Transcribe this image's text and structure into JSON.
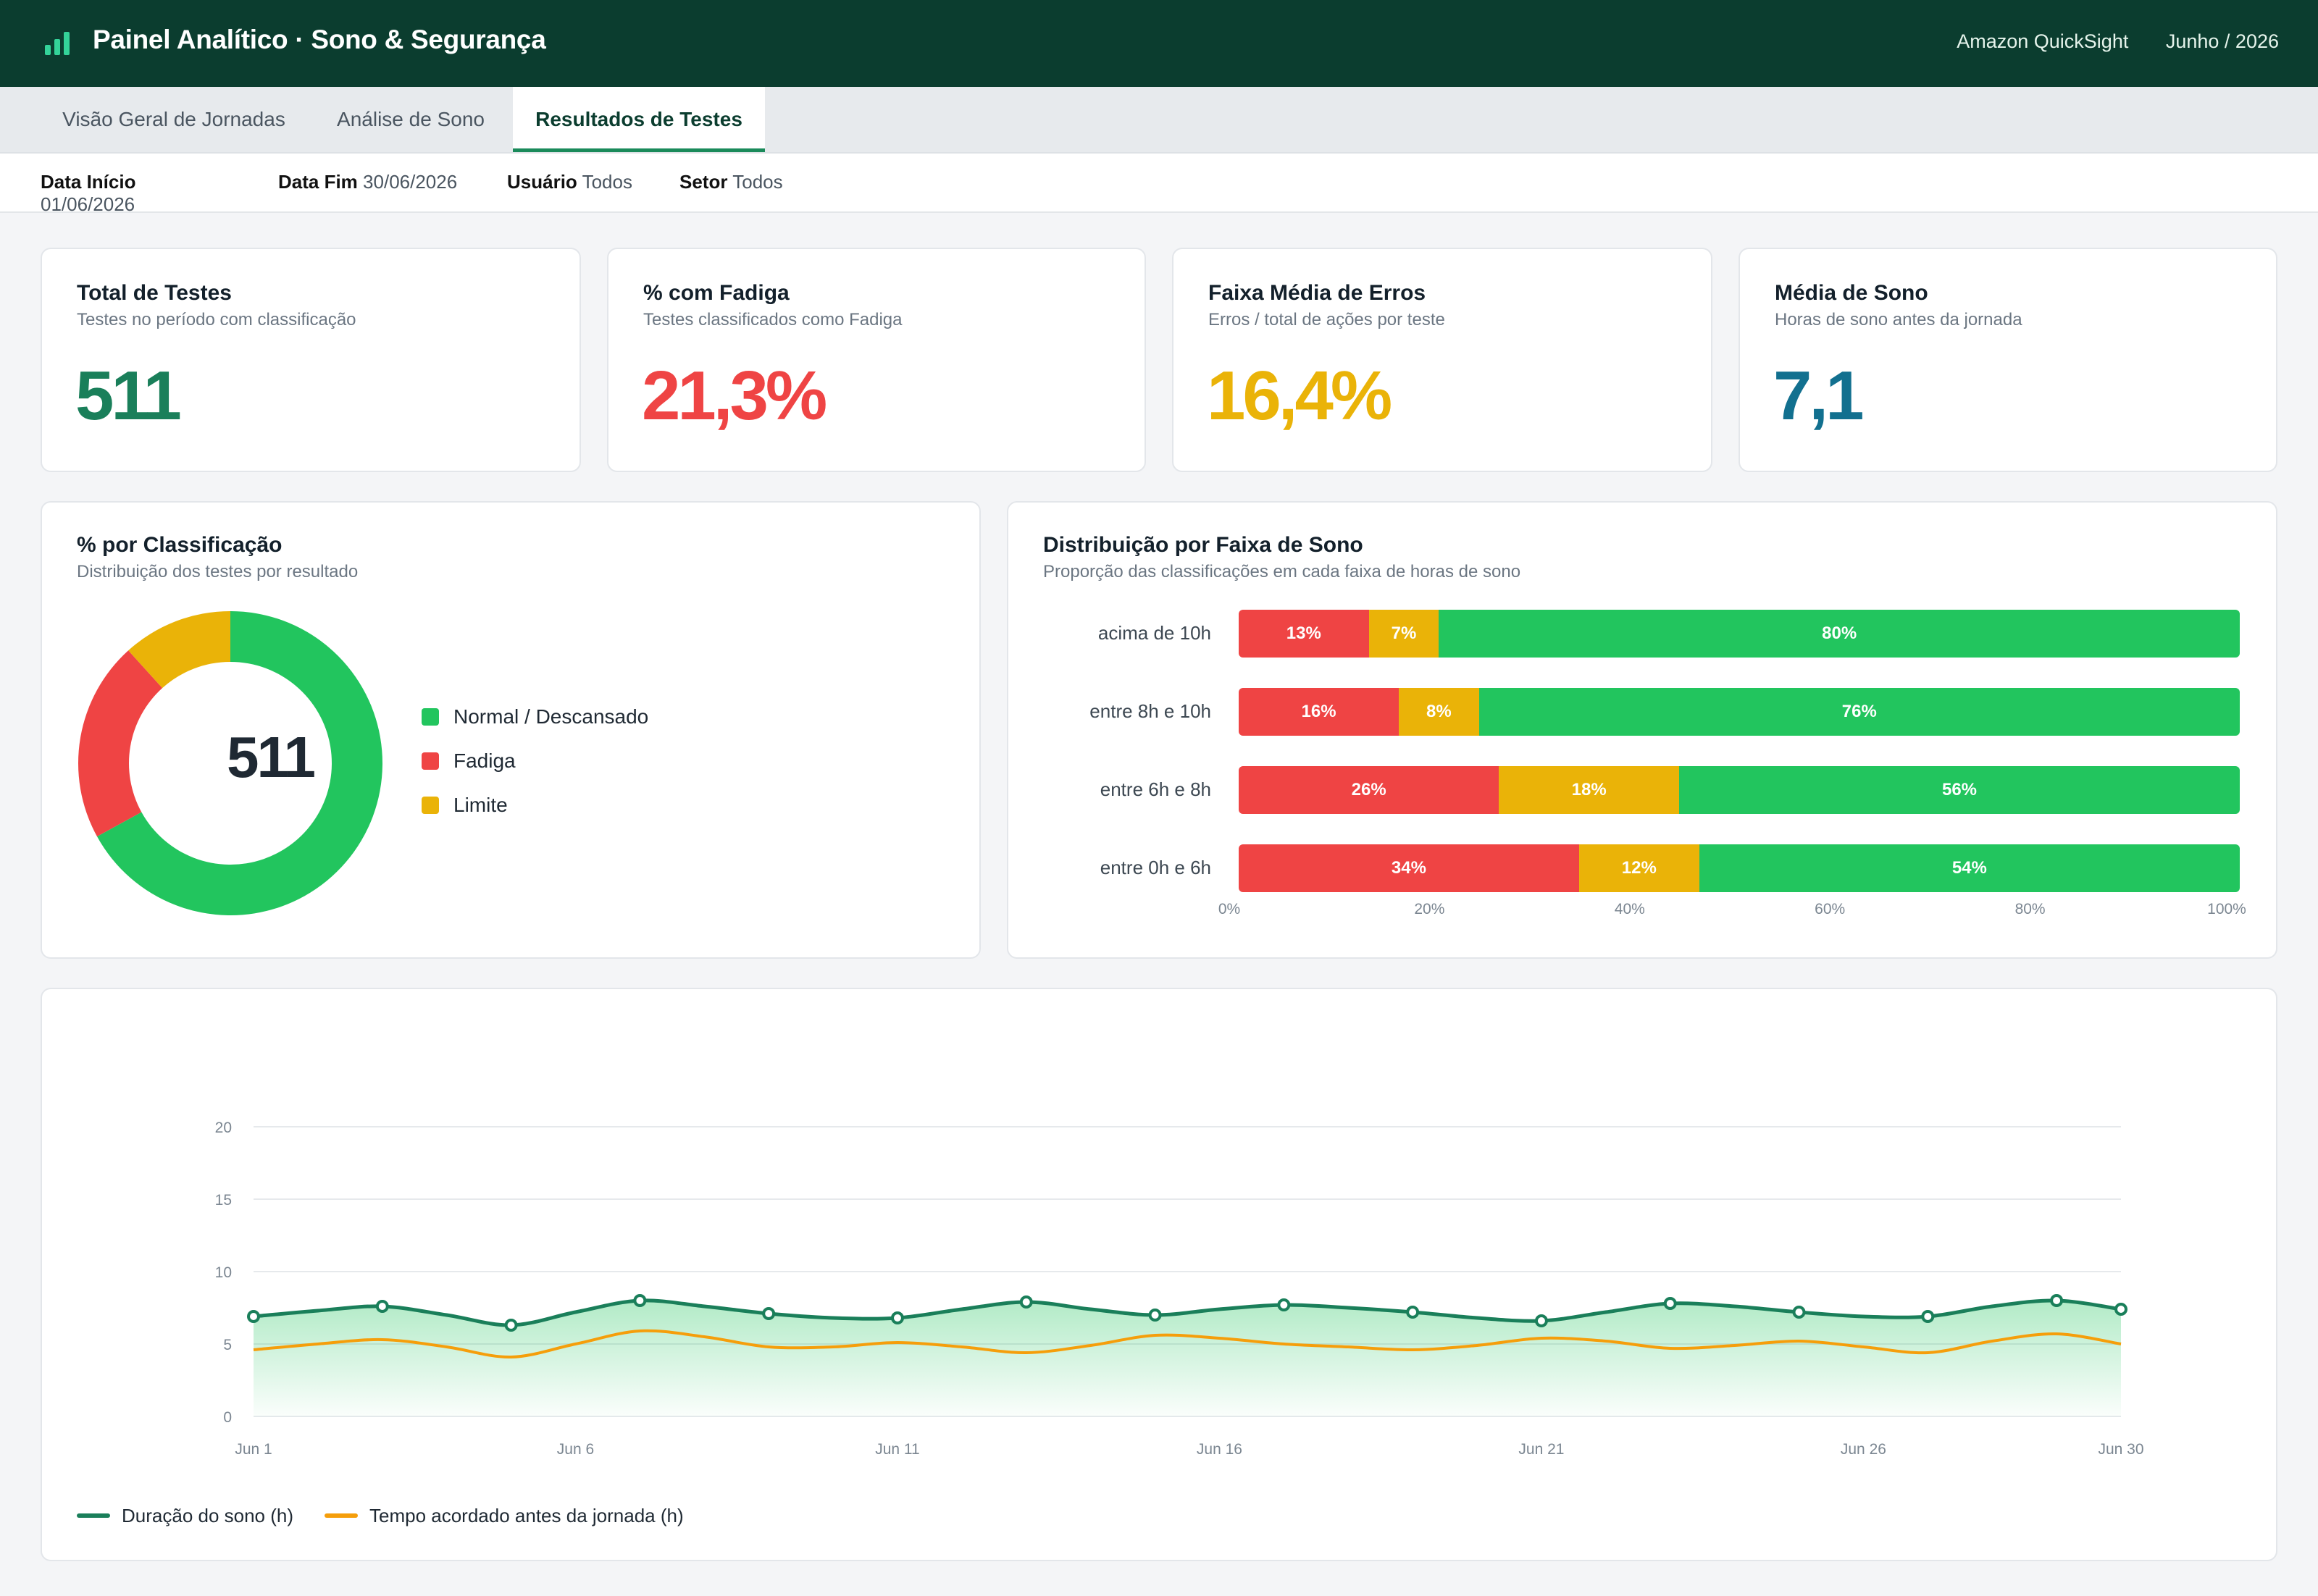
{
  "header": {
    "title": "Painel Analítico · Sono & Segurança",
    "platform": "Amazon QuickSight",
    "period": "Junho / 2026"
  },
  "tabs": [
    {
      "label": "Visão Geral de Jornadas",
      "active": false
    },
    {
      "label": "Análise de Sono",
      "active": false
    },
    {
      "label": "Resultados de Testes",
      "active": true
    }
  ],
  "filters": {
    "start_label": "Data Início",
    "start_value": "01/06/2026",
    "end_label": "Data Fim",
    "end_value": "30/06/2026",
    "user_label": "Usuário",
    "user_value": "Todos",
    "sector_label": "Setor",
    "sector_value": "Todos"
  },
  "kpis": [
    {
      "title": "Total de Testes",
      "subtitle": "Testes no período com classificação",
      "value": "511",
      "color": "#1a7f5a"
    },
    {
      "title": "% com Fadiga",
      "subtitle": "Testes classificados como Fadiga",
      "value": "21,3%",
      "color": "#ef4444"
    },
    {
      "title": "Faixa Média de Erros",
      "subtitle": "Erros / total de ações por teste",
      "value": "16,4%",
      "color": "#eab308"
    },
    {
      "title": "Média de Sono",
      "subtitle": "Horas de sono antes da jornada",
      "value": "7,1",
      "color": "#12708f"
    }
  ],
  "classification": {
    "title": "% por Classificação",
    "subtitle": "Distribuição dos testes por resultado",
    "center_value": "511",
    "legend": [
      {
        "label": "Normal / Descansado",
        "color": "#22c55e"
      },
      {
        "label": "Fadiga",
        "color": "#ef4444"
      },
      {
        "label": "Limite",
        "color": "#eab308"
      }
    ]
  },
  "sleep_bands": {
    "title": "Distribuição por Faixa de Sono",
    "subtitle": "Proporção das classificações em cada faixa de horas de sono",
    "colors": {
      "fadiga": "#ef4444",
      "limite": "#eab308",
      "normal": "#22c55e"
    },
    "axis_ticks": [
      "0%",
      "20%",
      "40%",
      "60%",
      "80%",
      "100%"
    ],
    "rows": [
      {
        "label": "acima de 10h",
        "fadiga": 13,
        "limite": 7,
        "normal": 80
      },
      {
        "label": "entre 8h e 10h",
        "fadiga": 16,
        "limite": 8,
        "normal": 76
      },
      {
        "label": "entre 6h e 8h",
        "fadiga": 26,
        "limite": 18,
        "normal": 56
      },
      {
        "label": "entre 0h e 6h",
        "fadiga": 34,
        "limite": 12,
        "normal": 54
      }
    ]
  },
  "chart_data": [
    {
      "type": "pie",
      "categories": [
        "Normal / Descansado",
        "Fadiga",
        "Limite"
      ],
      "values": [
        67,
        21.3,
        11.7
      ],
      "colors": [
        "#22c55e",
        "#ef4444",
        "#eab308"
      ],
      "center_label": "511",
      "legend_position": "right"
    },
    {
      "type": "bar",
      "orientation": "horizontal",
      "stacked": true,
      "title": "Distribuição por Faixa de Sono",
      "subtitle": "Proporção das classificações em cada faixa de horas de sono",
      "categories": [
        "acima de 10h",
        "entre 8h e 10h",
        "entre 6h e 8h",
        "entre 0h e 6h"
      ],
      "series": [
        {
          "values": [
            13,
            16,
            26,
            34
          ],
          "color": "#ef4444"
        },
        {
          "values": [
            7,
            8,
            18,
            12
          ],
          "color": "#eab308"
        },
        {
          "values": [
            80,
            76,
            56,
            54
          ],
          "color": "#22c55e"
        }
      ],
      "xlim": [
        0,
        100
      ],
      "x_ticks": [
        "0%",
        "20%",
        "40%",
        "60%",
        "80%",
        "100%"
      ]
    },
    {
      "type": "line",
      "x": [
        "Jun 1",
        "Jun 2",
        "Jun 3",
        "Jun 4",
        "Jun 5",
        "Jun 6",
        "Jun 7",
        "Jun 8",
        "Jun 9",
        "Jun 10",
        "Jun 11",
        "Jun 12",
        "Jun 13",
        "Jun 14",
        "Jun 15",
        "Jun 16",
        "Jun 17",
        "Jun 18",
        "Jun 19",
        "Jun 20",
        "Jun 21",
        "Jun 22",
        "Jun 23",
        "Jun 24",
        "Jun 25",
        "Jun 26",
        "Jun 27",
        "Jun 28",
        "Jun 29",
        "Jun 30"
      ],
      "x_ticks": [
        "Jun 1",
        "Jun 6",
        "Jun 11",
        "Jun 16",
        "Jun 21",
        "Jun 26",
        "Jun 30"
      ],
      "y_ticks": [
        "0",
        "5",
        "10",
        "15",
        "20"
      ],
      "ylim": [
        0,
        20
      ],
      "grid": true,
      "legend_position": "bottom-left",
      "series": [
        {
          "name": "Duração do sono (h)",
          "color": "#1a7f5a",
          "area": true,
          "markers_every": 2,
          "values": [
            6.9,
            7.3,
            7.6,
            7.0,
            6.3,
            7.2,
            8.0,
            7.6,
            7.1,
            6.8,
            6.8,
            7.4,
            7.9,
            7.4,
            7.0,
            7.4,
            7.7,
            7.5,
            7.2,
            6.8,
            6.6,
            7.2,
            7.8,
            7.6,
            7.2,
            6.9,
            6.9,
            7.6,
            8.0,
            7.4
          ]
        },
        {
          "name": "Tempo acordado antes da jornada (h)",
          "color": "#f59e0b",
          "area": false,
          "values": [
            4.6,
            5.0,
            5.3,
            4.8,
            4.1,
            5.0,
            5.9,
            5.5,
            4.8,
            4.8,
            5.1,
            4.8,
            4.4,
            4.9,
            5.6,
            5.4,
            5.0,
            4.8,
            4.6,
            4.9,
            5.4,
            5.2,
            4.7,
            4.9,
            5.2,
            4.8,
            4.4,
            5.2,
            5.7,
            5.0
          ]
        }
      ]
    }
  ]
}
